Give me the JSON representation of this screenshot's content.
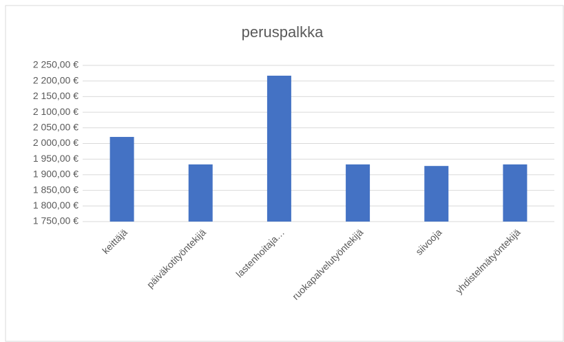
{
  "chart_data": {
    "type": "bar",
    "title": "peruspalkka",
    "categories": [
      "keittäjä",
      "päiväkotityöntekijä",
      "lastenhoitaja…",
      "ruokapalvelutyöntekijä",
      "siivooja",
      "yhdistelmätyöntekijä"
    ],
    "values": [
      2021,
      1933,
      2217,
      1933,
      1928,
      1933
    ],
    "color": "#4472c4",
    "ylim": [
      1750,
      2250
    ],
    "yticks": [
      {
        "value": 1750,
        "label": "1 750,00 €"
      },
      {
        "value": 1800,
        "label": "1 800,00 €"
      },
      {
        "value": 1850,
        "label": "1 850,00 €"
      },
      {
        "value": 1900,
        "label": "1 900,00 €"
      },
      {
        "value": 1950,
        "label": "1 950,00 €"
      },
      {
        "value": 2000,
        "label": "2 000,00 €"
      },
      {
        "value": 2050,
        "label": "2 050,00 €"
      },
      {
        "value": 2100,
        "label": "2 100,00 €"
      },
      {
        "value": 2150,
        "label": "2 150,00 €"
      },
      {
        "value": 2200,
        "label": "2 200,00 €"
      },
      {
        "value": 2250,
        "label": "2 250,00 €"
      }
    ],
    "grid": true
  }
}
